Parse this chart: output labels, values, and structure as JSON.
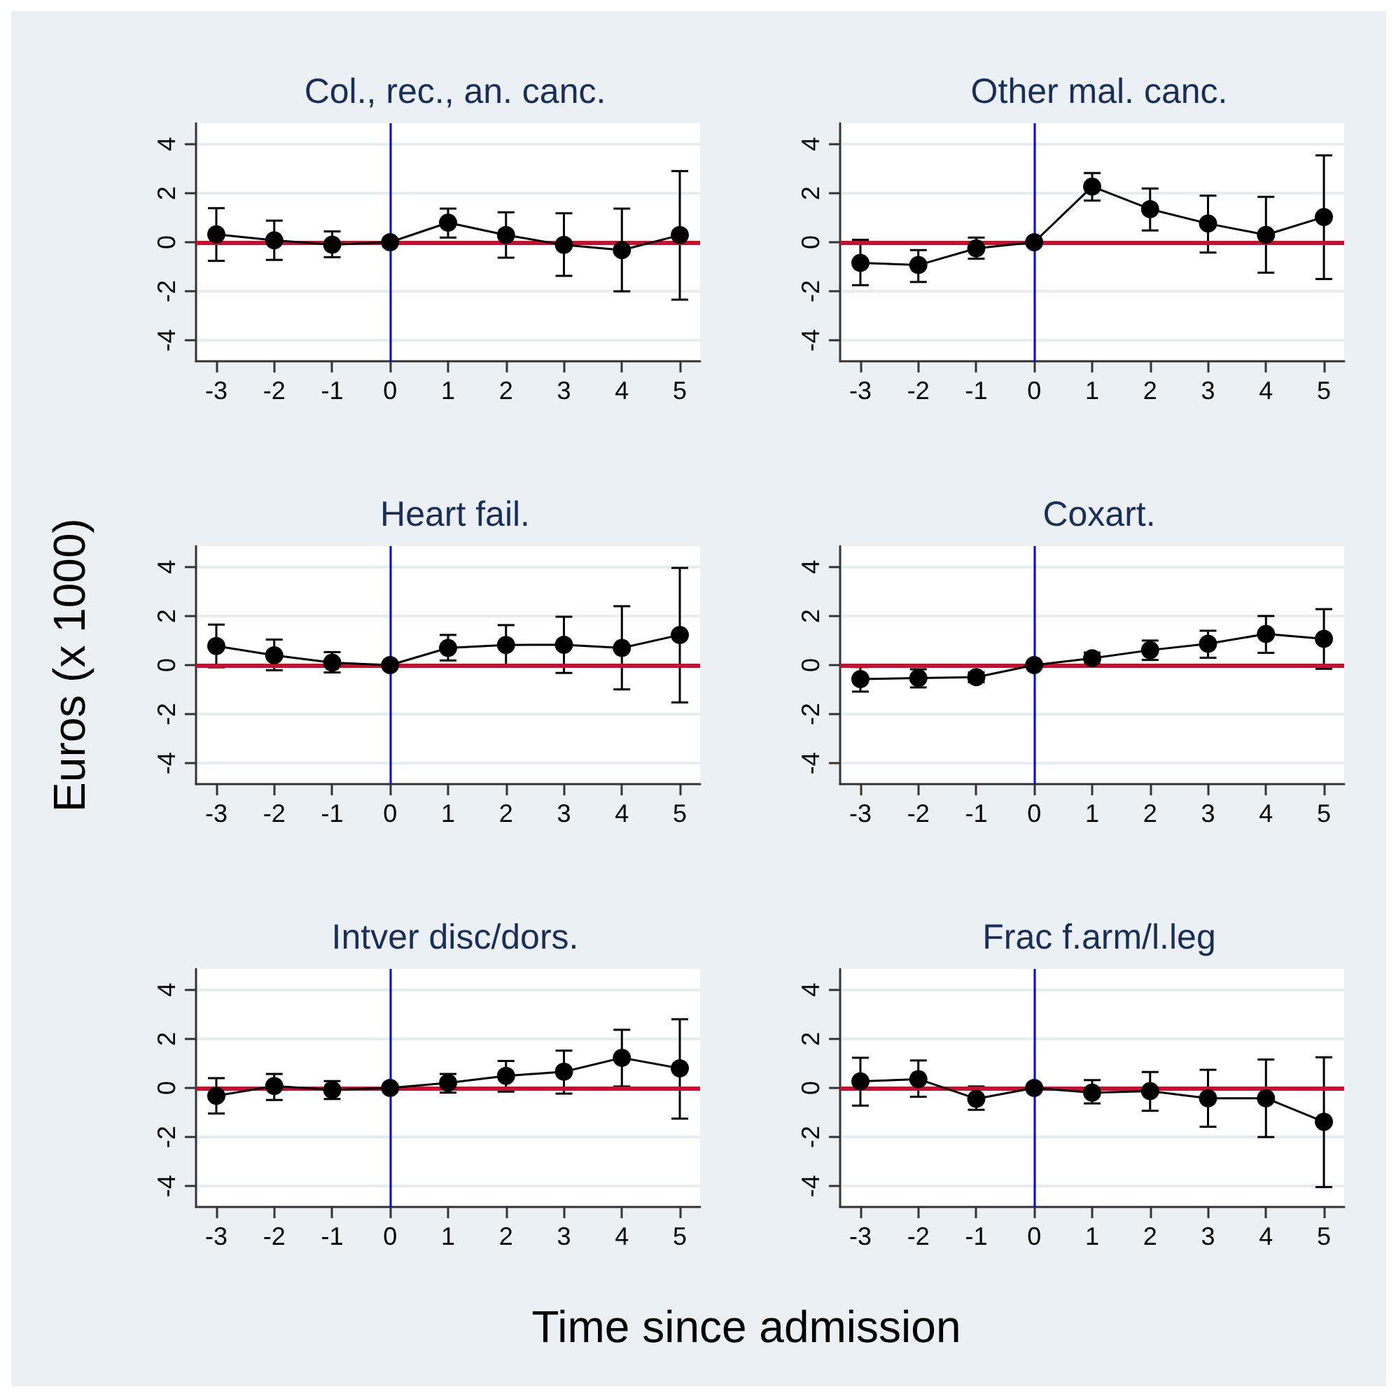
{
  "chart_data": [
    {
      "type": "line",
      "title": "Col., rec., an. canc.",
      "x": [
        -3,
        -2,
        -1,
        0,
        1,
        2,
        3,
        4,
        5
      ],
      "xlim": [
        -3.35,
        5.35
      ],
      "xticks": [
        -3,
        -2,
        -1,
        0,
        1,
        2,
        3,
        4,
        5
      ],
      "ylim": [
        -4.85,
        4.85
      ],
      "yticks": [
        -4,
        -2,
        0,
        2,
        4
      ],
      "grid": "y",
      "marker": "circle",
      "line_style": "solid",
      "series": [
        {
          "color": "#000000",
          "values": [
            0.32,
            0.08,
            -0.1,
            0,
            0.8,
            0.29,
            -0.11,
            -0.32,
            0.29
          ],
          "errors": [
            [
              -0.76,
              1.39
            ],
            [
              -0.72,
              0.88
            ],
            [
              -0.61,
              0.44
            ],
            null,
            [
              0.19,
              1.37
            ],
            [
              -0.63,
              1.22
            ],
            [
              -1.37,
              1.18
            ],
            [
              -2.0,
              1.37
            ],
            [
              -2.34,
              2.9
            ]
          ]
        }
      ],
      "ref_lines": [
        {
          "axis": "y",
          "value": 0,
          "color": "#c8102e"
        },
        {
          "axis": "x",
          "value": 0,
          "color": "#0000ff"
        }
      ]
    },
    {
      "type": "line",
      "title": "Other mal. canc.",
      "x": [
        -3,
        -2,
        -1,
        0,
        1,
        2,
        3,
        4,
        5
      ],
      "xlim": [
        -3.35,
        5.35
      ],
      "xticks": [
        -3,
        -2,
        -1,
        0,
        1,
        2,
        3,
        4,
        5
      ],
      "ylim": [
        -4.85,
        4.85
      ],
      "yticks": [
        -4,
        -2,
        0,
        2,
        4
      ],
      "grid": "y",
      "marker": "circle",
      "line_style": "solid",
      "series": [
        {
          "color": "#000000",
          "values": [
            -0.84,
            -0.93,
            -0.25,
            0,
            2.27,
            1.35,
            0.76,
            0.3,
            1.03
          ],
          "errors": [
            [
              -1.75,
              0.1
            ],
            [
              -1.62,
              -0.32
            ],
            [
              -0.67,
              0.19
            ],
            null,
            [
              1.7,
              2.82
            ],
            [
              0.48,
              2.19
            ],
            [
              -0.42,
              1.9
            ],
            [
              -1.24,
              1.85
            ],
            [
              -1.5,
              3.54
            ]
          ]
        }
      ],
      "ref_lines": [
        {
          "axis": "y",
          "value": 0,
          "color": "#c8102e"
        },
        {
          "axis": "x",
          "value": 0,
          "color": "#0000ff"
        }
      ]
    },
    {
      "type": "line",
      "title": "Heart fail.",
      "ylabel": "Euros (x 1000)",
      "x": [
        -3,
        -2,
        -1,
        0,
        1,
        2,
        3,
        4,
        5
      ],
      "xlim": [
        -3.35,
        5.35
      ],
      "xticks": [
        -3,
        -2,
        -1,
        0,
        1,
        2,
        3,
        4,
        5
      ],
      "ylim": [
        -4.85,
        4.85
      ],
      "yticks": [
        -4,
        -2,
        0,
        2,
        4
      ],
      "grid": "y",
      "marker": "circle",
      "line_style": "solid",
      "series": [
        {
          "color": "#000000",
          "values": [
            0.78,
            0.4,
            0.1,
            0,
            0.7,
            0.82,
            0.83,
            0.7,
            1.23
          ],
          "errors": [
            [
              -0.09,
              1.65
            ],
            [
              -0.21,
              1.04
            ],
            [
              -0.3,
              0.53
            ],
            null,
            [
              0.19,
              1.23
            ],
            [
              0,
              1.63
            ],
            [
              -0.32,
              1.97
            ],
            [
              -0.99,
              2.4
            ],
            [
              -1.52,
              3.96
            ]
          ]
        }
      ],
      "ref_lines": [
        {
          "axis": "y",
          "value": 0,
          "color": "#c8102e"
        },
        {
          "axis": "x",
          "value": 0,
          "color": "#0000ff"
        }
      ]
    },
    {
      "type": "line",
      "title": "Coxart.",
      "x": [
        -3,
        -2,
        -1,
        0,
        1,
        2,
        3,
        4,
        5
      ],
      "xlim": [
        -3.35,
        5.35
      ],
      "xticks": [
        -3,
        -2,
        -1,
        0,
        1,
        2,
        3,
        4,
        5
      ],
      "ylim": [
        -4.85,
        4.85
      ],
      "yticks": [
        -4,
        -2,
        0,
        2,
        4
      ],
      "grid": "y",
      "marker": "circle",
      "line_style": "solid",
      "series": [
        {
          "color": "#000000",
          "values": [
            -0.57,
            -0.53,
            -0.49,
            0,
            0.28,
            0.61,
            0.87,
            1.27,
            1.07
          ],
          "errors": [
            [
              -1.08,
              -0.08
            ],
            [
              -0.91,
              -0.17
            ],
            [
              -0.7,
              -0.3
            ],
            null,
            [
              0.04,
              0.51
            ],
            [
              0.21,
              1.0
            ],
            [
              0.3,
              1.4
            ],
            [
              0.5,
              2.0
            ],
            [
              -0.15,
              2.28
            ]
          ]
        }
      ],
      "ref_lines": [
        {
          "axis": "y",
          "value": 0,
          "color": "#c8102e"
        },
        {
          "axis": "x",
          "value": 0,
          "color": "#0000ff"
        }
      ]
    },
    {
      "type": "line",
      "title": "Intver disc/dors.",
      "xlabel": "Time since admission",
      "x": [
        -3,
        -2,
        -1,
        0,
        1,
        2,
        3,
        4,
        5
      ],
      "xlim": [
        -3.35,
        5.35
      ],
      "xticks": [
        -3,
        -2,
        -1,
        0,
        1,
        2,
        3,
        4,
        5
      ],
      "ylim": [
        -4.85,
        4.85
      ],
      "yticks": [
        -4,
        -2,
        0,
        2,
        4
      ],
      "grid": "y",
      "marker": "circle",
      "line_style": "solid",
      "series": [
        {
          "color": "#000000",
          "values": [
            -0.32,
            0.08,
            -0.08,
            0,
            0.21,
            0.49,
            0.66,
            1.23,
            0.8
          ],
          "errors": [
            [
              -1.04,
              0.4
            ],
            [
              -0.49,
              0.57
            ],
            [
              -0.45,
              0.28
            ],
            null,
            [
              -0.19,
              0.57
            ],
            [
              -0.15,
              1.1
            ],
            [
              -0.23,
              1.52
            ],
            [
              0.06,
              2.37
            ],
            [
              -1.25,
              2.8
            ]
          ]
        }
      ],
      "ref_lines": [
        {
          "axis": "y",
          "value": 0,
          "color": "#c8102e"
        },
        {
          "axis": "x",
          "value": 0,
          "color": "#0000ff"
        }
      ]
    },
    {
      "type": "line",
      "title": "Frac f.arm/l.leg",
      "x": [
        -3,
        -2,
        -1,
        0,
        1,
        2,
        3,
        4,
        5
      ],
      "xlim": [
        -3.35,
        5.35
      ],
      "xticks": [
        -3,
        -2,
        -1,
        0,
        1,
        2,
        3,
        4,
        5
      ],
      "ylim": [
        -4.85,
        4.85
      ],
      "yticks": [
        -4,
        -2,
        0,
        2,
        4
      ],
      "grid": "y",
      "marker": "circle",
      "line_style": "solid",
      "series": [
        {
          "color": "#000000",
          "values": [
            0.27,
            0.36,
            -0.44,
            0,
            -0.19,
            -0.13,
            -0.42,
            -0.42,
            -1.38
          ],
          "errors": [
            [
              -0.72,
              1.23
            ],
            [
              -0.36,
              1.12
            ],
            [
              -0.89,
              0.06
            ],
            null,
            [
              -0.63,
              0.32
            ],
            [
              -0.93,
              0.65
            ],
            [
              -1.58,
              0.74
            ],
            [
              -2.0,
              1.16
            ],
            [
              -4.04,
              1.25
            ]
          ]
        }
      ],
      "ref_lines": [
        {
          "axis": "y",
          "value": 0,
          "color": "#c8102e"
        },
        {
          "axis": "x",
          "value": 0,
          "color": "#0000ff"
        }
      ]
    }
  ]
}
